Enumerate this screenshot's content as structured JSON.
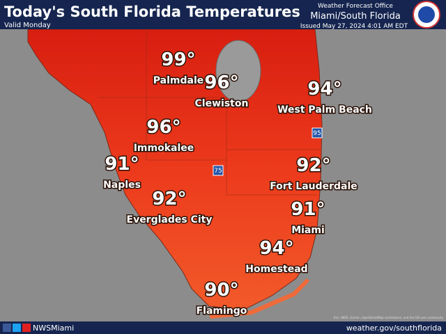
{
  "header": {
    "title": "Today's South Florida Temperatures",
    "valid": "Valid Monday"
  },
  "office": {
    "name": "Weather Forecast Office",
    "region": "Miami/South Florida",
    "issued": "Issued May 27, 2024 4:01 AM EDT"
  },
  "cities": [
    {
      "name": "Palmdale",
      "temp": "99°"
    },
    {
      "name": "Clewiston",
      "temp": "96°"
    },
    {
      "name": "West Palm Beach",
      "temp": "94°"
    },
    {
      "name": "Immokalee",
      "temp": "96°"
    },
    {
      "name": "Naples",
      "temp": "91°"
    },
    {
      "name": "Fort Lauderdale",
      "temp": "92°"
    },
    {
      "name": "Everglades City",
      "temp": "92°"
    },
    {
      "name": "Miami",
      "temp": "91°"
    },
    {
      "name": "Homestead",
      "temp": "94°"
    },
    {
      "name": "Flamingo",
      "temp": "90°"
    }
  ],
  "highways": [
    "95",
    "75"
  ],
  "footer": {
    "social": "NWSMiami",
    "attribution": "Esri, HERE, Garmin, OpenStreetMap contributors, and the GIS user community",
    "url": "weather.gov/southflorida"
  }
}
